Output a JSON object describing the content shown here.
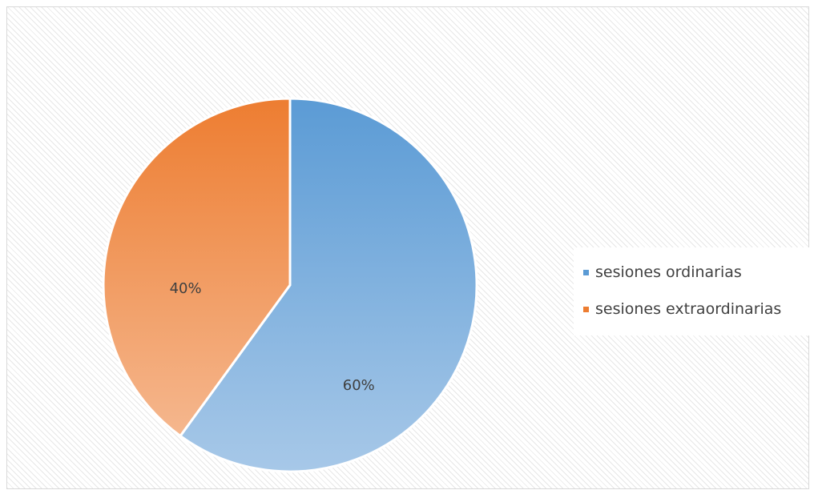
{
  "chart_data": {
    "type": "pie",
    "title": "",
    "slices": [
      {
        "name": "sesiones ordinarias",
        "value": 60,
        "label": "60%",
        "color": "#5b9bd5",
        "color_light": "#a7c8e8"
      },
      {
        "name": "sesiones extraordinarias",
        "value": 40,
        "label": "40%",
        "color": "#ed7d31",
        "color_light": "#f5b78e"
      }
    ],
    "legend_position": "right",
    "start_angle": "top",
    "direction": "clockwise"
  }
}
